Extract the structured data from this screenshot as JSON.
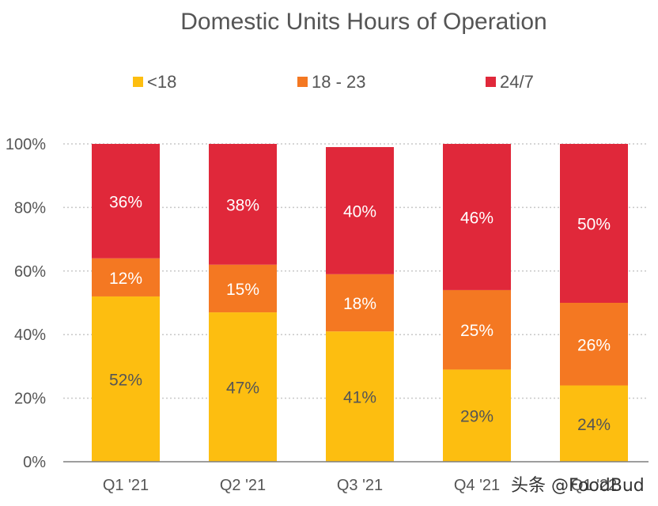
{
  "chart_data": {
    "type": "bar",
    "stacked": true,
    "title": "Domestic Units Hours of Operation",
    "categories": [
      "Q1 '21",
      "Q2 '21",
      "Q3 '21",
      "Q4 '21",
      "Q1 '22"
    ],
    "series": [
      {
        "name": "<18",
        "color": "#FDBE10",
        "values": [
          52,
          47,
          41,
          29,
          24
        ],
        "labels": [
          "52%",
          "47%",
          "41%",
          "29%",
          "24%"
        ]
      },
      {
        "name": "18 - 23",
        "color": "#F47822",
        "values": [
          12,
          15,
          18,
          25,
          26
        ],
        "labels": [
          "12%",
          "15%",
          "18%",
          "25%",
          "26%"
        ]
      },
      {
        "name": "24/7",
        "color": "#E0283A",
        "values": [
          36,
          38,
          40,
          46,
          50
        ],
        "labels": [
          "36%",
          "38%",
          "40%",
          "46%",
          "50%"
        ]
      }
    ],
    "y_ticks": [
      "0%",
      "20%",
      "40%",
      "60%",
      "80%",
      "100%"
    ],
    "ylim": [
      0,
      100
    ],
    "legend_position": "top",
    "grid": "horizontal dotted"
  },
  "watermark": "头条 @FoodBud"
}
